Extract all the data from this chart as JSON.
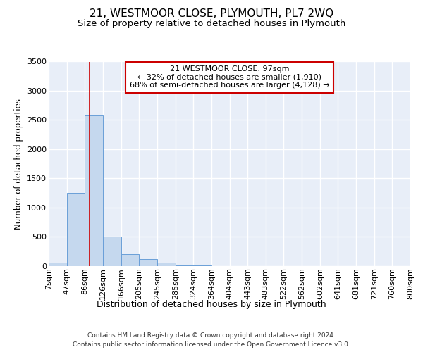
{
  "title": "21, WESTMOOR CLOSE, PLYMOUTH, PL7 2WQ",
  "subtitle": "Size of property relative to detached houses in Plymouth",
  "xlabel": "Distribution of detached houses by size in Plymouth",
  "ylabel": "Number of detached properties",
  "footnote1": "Contains HM Land Registry data © Crown copyright and database right 2024.",
  "footnote2": "Contains public sector information licensed under the Open Government Licence v3.0.",
  "annotation_title": "21 WESTMOOR CLOSE: 97sqm",
  "annotation_line1": "← 32% of detached houses are smaller (1,910)",
  "annotation_line2": "68% of semi-detached houses are larger (4,128) →",
  "property_size": 97,
  "bin_edges": [
    7,
    47,
    86,
    126,
    166,
    205,
    245,
    285,
    324,
    364,
    404,
    443,
    483,
    522,
    562,
    602,
    641,
    681,
    721,
    760,
    800
  ],
  "bin_labels": [
    "7sqm",
    "47sqm",
    "86sqm",
    "126sqm",
    "166sqm",
    "205sqm",
    "245sqm",
    "285sqm",
    "324sqm",
    "364sqm",
    "404sqm",
    "443sqm",
    "483sqm",
    "522sqm",
    "562sqm",
    "602sqm",
    "641sqm",
    "681sqm",
    "721sqm",
    "760sqm",
    "800sqm"
  ],
  "bar_values": [
    50,
    1250,
    2580,
    500,
    200,
    120,
    50,
    10,
    5,
    0,
    0,
    0,
    0,
    0,
    0,
    0,
    0,
    0,
    0,
    0
  ],
  "bar_color": "#c5d8ee",
  "bar_edge_color": "#6a9fd8",
  "vline_color": "#cc0000",
  "ylim": [
    0,
    3500
  ],
  "yticks": [
    0,
    500,
    1000,
    1500,
    2000,
    2500,
    3000,
    3500
  ],
  "bg_color": "#e8eef8",
  "grid_color": "#ffffff",
  "title_fontsize": 11,
  "subtitle_fontsize": 9.5,
  "ylabel_fontsize": 8.5,
  "xlabel_fontsize": 9,
  "tick_fontsize": 8,
  "footnote_fontsize": 6.5
}
